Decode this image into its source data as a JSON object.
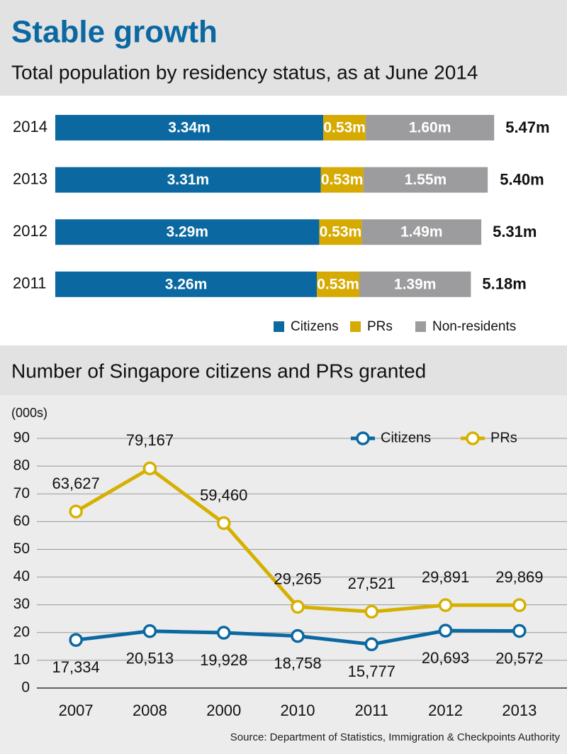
{
  "chart_data": [
    {
      "type": "bar",
      "orientation": "horizontal",
      "stacked": true,
      "title": "Stable growth",
      "subtitle": "Total population by residency status, as at June 2014",
      "categories": [
        "2014",
        "2013",
        "2012",
        "2011"
      ],
      "series": [
        {
          "name": "Citizens",
          "color": "#0b68a1",
          "values": [
            3.34,
            3.31,
            3.29,
            3.26
          ],
          "value_labels": [
            "3.34m",
            "3.31m",
            "3.29m",
            "3.26m"
          ]
        },
        {
          "name": "PRs",
          "color": "#d6aa00",
          "values": [
            0.53,
            0.53,
            0.53,
            0.53
          ],
          "value_labels": [
            "0.53m",
            "0.53m",
            "0.53m",
            "0.53m"
          ]
        },
        {
          "name": "Non-residents",
          "color": "#9c9c9e",
          "values": [
            1.6,
            1.55,
            1.49,
            1.39
          ],
          "value_labels": [
            "1.60m",
            "1.55m",
            "1.49m",
            "1.39m"
          ]
        }
      ],
      "totals": [
        5.47,
        5.4,
        5.31,
        5.18
      ],
      "total_labels": [
        "5.47m",
        "5.40m",
        "5.31m",
        "5.18m"
      ]
    },
    {
      "type": "line",
      "title": "Number of Singapore citizens and PRs granted",
      "y_label": "(000s)",
      "categories": [
        "2007",
        "2008",
        "2000",
        "2010",
        "2011",
        "2012",
        "2013"
      ],
      "series": [
        {
          "name": "Citizens",
          "color": "#0b68a1",
          "values": [
            17.334,
            20.513,
            19.928,
            18.758,
            15.777,
            20.693,
            20.572
          ],
          "value_labels": [
            "17,334",
            "20,513",
            "19,928",
            "18,758",
            "15,777",
            "20,693",
            "20,572"
          ]
        },
        {
          "name": "PRs",
          "color": "#d6b000",
          "values": [
            63.627,
            79.167,
            59.46,
            29.265,
            27.521,
            29.891,
            29.869
          ],
          "value_labels": [
            "63,627",
            "79,167",
            "59,460",
            "29,265",
            "27,521",
            "29,891",
            "29,869"
          ]
        }
      ],
      "ylim": [
        0,
        90
      ],
      "yticks": [
        0,
        10,
        20,
        30,
        40,
        50,
        60,
        70,
        80,
        90
      ],
      "grid": true,
      "legend": "top-right"
    }
  ],
  "source": "Source: Department of Statistics, Immigration & Checkpoints Authority"
}
